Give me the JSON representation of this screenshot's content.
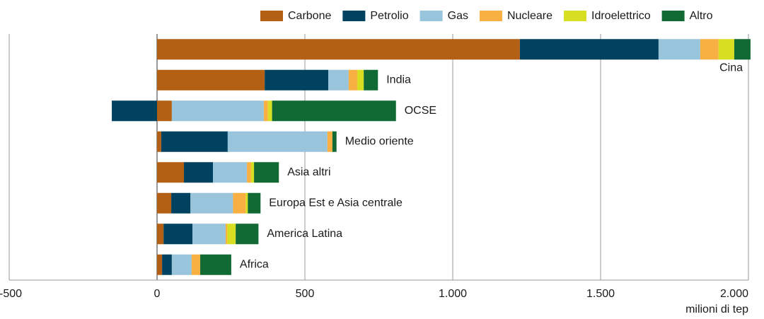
{
  "chart_data": {
    "type": "stacked-bar-horizontal",
    "x_label": "milioni di tep",
    "categories": [
      "Cina",
      "India",
      "OCSE",
      "Medio oriente",
      "Asia altri",
      "Europa Est e Asia centrale",
      "America Latina",
      "Africa"
    ],
    "series": [
      {
        "name": "Carbone",
        "color": "#b35f14",
        "values": [
          1227,
          364,
          50,
          14,
          91,
          48,
          22,
          17
        ]
      },
      {
        "name": "Petrolio",
        "color": "#00425f",
        "values": [
          469,
          215,
          -153,
          225,
          98,
          65,
          98,
          33
        ]
      },
      {
        "name": "Gas",
        "color": "#98c4dc",
        "values": [
          141,
          69,
          311,
          337,
          115,
          144,
          112,
          67
        ]
      },
      {
        "name": "Nucleare",
        "color": "#f9b042",
        "values": [
          62,
          29,
          14,
          17,
          14,
          43,
          5,
          29
        ]
      },
      {
        "name": "Idroelettrico",
        "color": "#d8df23",
        "values": [
          53,
          22,
          14,
          0,
          10,
          7,
          29,
          0
        ]
      },
      {
        "name": "Altro",
        "color": "#116934",
        "values": [
          55,
          48,
          419,
          14,
          84,
          43,
          77,
          105
        ]
      }
    ],
    "xlim": [
      -500,
      2000
    ],
    "xticks": [
      -500,
      0,
      500,
      {
        "value": 1000,
        "label": "1.000"
      },
      {
        "value": 1500,
        "label": "1.500"
      },
      {
        "value": 2000,
        "label": "2.000"
      }
    ],
    "grid": true,
    "legend": "top-right"
  }
}
